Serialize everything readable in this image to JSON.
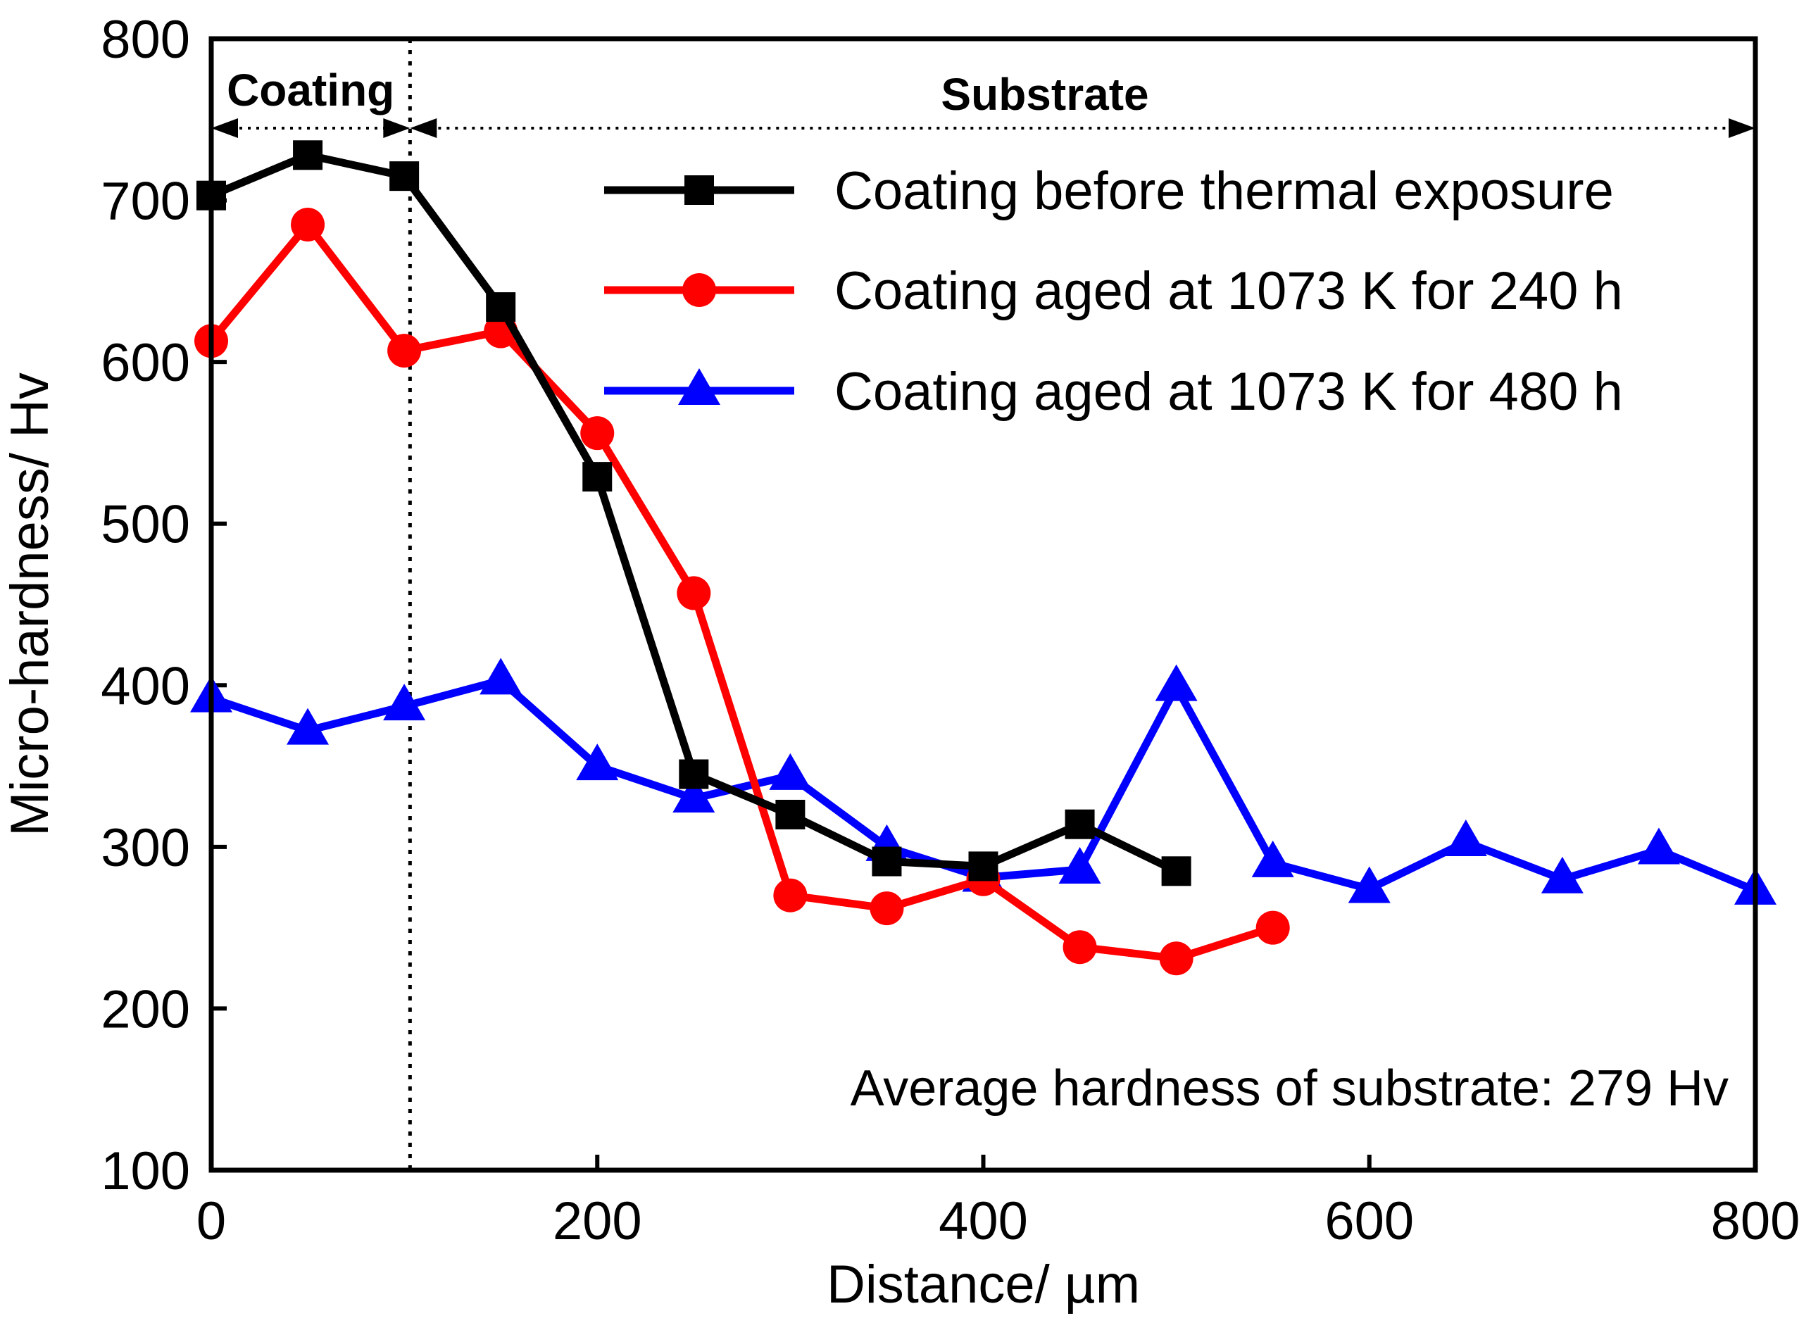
{
  "chart_data": {
    "type": "line",
    "xlabel": "Distance/ µm",
    "ylabel": "Micro-hardness/ Hv",
    "xlim": [
      0,
      800
    ],
    "ylim": [
      100,
      800
    ],
    "xticks": [
      0,
      200,
      400,
      600,
      800
    ],
    "yticks": [
      100,
      200,
      300,
      400,
      500,
      600,
      700,
      800
    ],
    "x_tick_labels": [
      "0",
      "200",
      "400",
      "600",
      "800"
    ],
    "y_tick_labels": [
      "100",
      "200",
      "300",
      "400",
      "500",
      "600",
      "700",
      "800"
    ],
    "boundary_x": 103,
    "regions": {
      "coating": "Coating",
      "substrate": "Substrate"
    },
    "annotation": "Average hardness of substrate: 279 Hv",
    "legend_position": "top-right",
    "series": [
      {
        "name": "Coating before thermal exposure",
        "color": "#000000",
        "marker": "square",
        "x": [
          0,
          50,
          100,
          150,
          200,
          250,
          300,
          350,
          400,
          450,
          500
        ],
        "y": [
          703,
          728,
          715,
          634,
          529,
          345,
          320,
          291,
          288,
          314,
          285
        ]
      },
      {
        "name": "Coating aged at 1073 K for 240 h",
        "color": "#ff0000",
        "marker": "circle",
        "x": [
          0,
          50,
          100,
          150,
          200,
          250,
          300,
          350,
          400,
          450,
          500,
          550
        ],
        "y": [
          613,
          685,
          607,
          619,
          556,
          457,
          270,
          262,
          280,
          238,
          231,
          250
        ]
      },
      {
        "name": "Coating aged at 1073 K for 480 h",
        "color": "#0000ff",
        "marker": "triangle",
        "x": [
          0,
          50,
          100,
          150,
          200,
          250,
          300,
          350,
          400,
          450,
          500,
          550,
          600,
          650,
          700,
          750,
          800
        ],
        "y": [
          392,
          372,
          387,
          403,
          350,
          330,
          344,
          300,
          281,
          286,
          399,
          290,
          274,
          303,
          280,
          298,
          273
        ]
      }
    ]
  }
}
